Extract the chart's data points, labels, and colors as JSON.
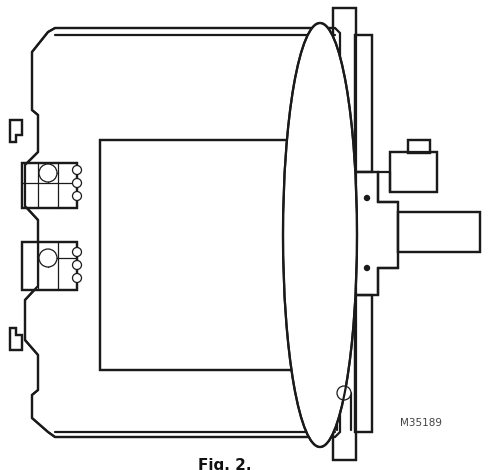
{
  "title": "Fig. 2.",
  "model_number": "M35189",
  "bg_color": "#ffffff",
  "line_color": "#1a1a1a",
  "lw": 1.6,
  "tlw": 0.9,
  "fig_width": 5.02,
  "fig_height": 4.7,
  "dpi": 100
}
